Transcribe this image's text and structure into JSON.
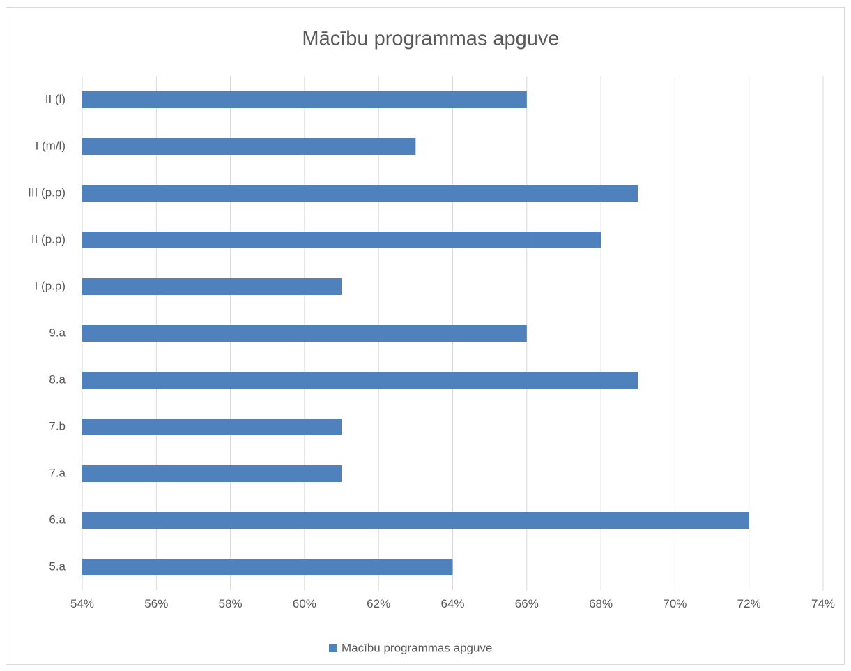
{
  "chart_data": {
    "type": "bar",
    "orientation": "horizontal",
    "title": "Mācību programmas apguve",
    "categories": [
      "5.a",
      "6.a",
      "7.a",
      "7.b",
      "8.a",
      "9.a",
      "I (p.p)",
      "II (p.p)",
      "III (p.p)",
      "I (m/l)",
      "II (l)"
    ],
    "series": [
      {
        "name": "Mācību programmas apguve",
        "color": "#4f81bd",
        "values": [
          64,
          72,
          61,
          61,
          69,
          66,
          61,
          68,
          69,
          63,
          66
        ]
      }
    ],
    "xlim": [
      54,
      74
    ],
    "xticks": [
      {
        "value": 54,
        "label": "54%"
      },
      {
        "value": 56,
        "label": "56%"
      },
      {
        "value": 58,
        "label": "58%"
      },
      {
        "value": 60,
        "label": "60%"
      },
      {
        "value": 62,
        "label": "62%"
      },
      {
        "value": 64,
        "label": "64%"
      },
      {
        "value": 66,
        "label": "66%"
      },
      {
        "value": 68,
        "label": "68%"
      },
      {
        "value": 70,
        "label": "70%"
      },
      {
        "value": 72,
        "label": "72%"
      },
      {
        "value": 74,
        "label": "74%"
      }
    ],
    "grid": true,
    "legend": "bottom"
  }
}
